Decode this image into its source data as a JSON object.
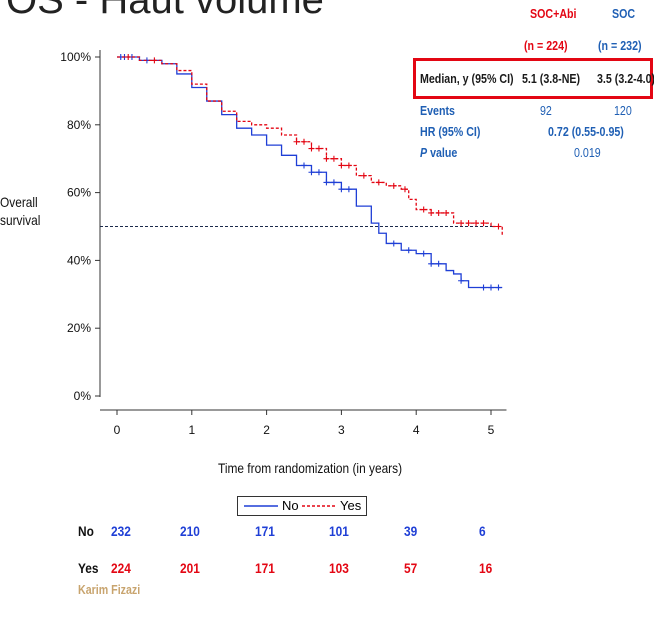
{
  "slide_title": "OS - Haut volume",
  "stats_table": {
    "arm_headers": [
      {
        "name": "SOC+Abi",
        "n": "(n = 224)"
      },
      {
        "name": "SOC",
        "n": "(n = 232)"
      }
    ],
    "rows": [
      {
        "label": "Median, y (95% CI)",
        "values": [
          "5.1 (3.8-NE)",
          "3.5 (3.2-4.0)"
        ]
      },
      {
        "label": "Events",
        "values": [
          "92",
          "120"
        ]
      },
      {
        "label": "HR (95% CI)",
        "value": "0.72 (0.55-0.95)"
      },
      {
        "label_italic": "P",
        "label_rest": " value",
        "value": "0.019"
      }
    ]
  },
  "legend": [
    {
      "label": "No",
      "color": "#1f3fd6",
      "style": "solid"
    },
    {
      "label": "Yes",
      "color": "#e30613",
      "style": "dashed"
    }
  ],
  "number_at_risk": {
    "rows": [
      {
        "label": "No",
        "color": "#1f3fd6",
        "values": [
          "232",
          "210",
          "171",
          "101",
          "39",
          "6"
        ]
      },
      {
        "label": "Yes",
        "color": "#e30613",
        "values": [
          "224",
          "201",
          "171",
          "103",
          "57",
          "16"
        ]
      }
    ]
  },
  "presenter": "Karim Fizazi",
  "chart_data": {
    "type": "line",
    "subtype": "kaplan-meier",
    "xlabel": "Time from randomization (in years)",
    "ylabel": "Overall survival",
    "xlim": [
      0,
      5.1
    ],
    "ylim": [
      0,
      100
    ],
    "x_ticks": [
      "0",
      "1",
      "2",
      "3",
      "4",
      "5"
    ],
    "y_ticks": [
      "0%",
      "20%",
      "40%",
      "60%",
      "80%",
      "100%"
    ],
    "reference_line_y": 50,
    "grid": false,
    "legend_position": "bottom-center",
    "series": [
      {
        "name": "No",
        "color": "#1f3fd6",
        "x": [
          0,
          0.3,
          0.6,
          0.8,
          1.0,
          1.2,
          1.4,
          1.6,
          1.8,
          2.0,
          2.2,
          2.4,
          2.6,
          2.8,
          3.0,
          3.2,
          3.4,
          3.5,
          3.6,
          3.8,
          4.0,
          4.2,
          4.4,
          4.5,
          4.6,
          4.7,
          5.0,
          5.15
        ],
        "y": [
          100,
          99,
          98,
          95,
          91,
          87,
          83,
          79,
          77,
          74,
          71,
          68,
          66,
          63,
          61,
          56,
          51,
          48,
          45,
          43,
          42,
          39,
          37,
          36,
          34,
          32,
          32,
          32
        ],
        "censor_x": [
          0.05,
          0.1,
          0.2,
          0.4,
          2.5,
          2.6,
          2.7,
          2.8,
          2.9,
          3.0,
          3.1,
          3.7,
          3.9,
          4.1,
          4.2,
          4.3,
          4.6,
          4.9,
          5.0,
          5.1
        ]
      },
      {
        "name": "Yes",
        "color": "#e30613",
        "x": [
          0,
          0.3,
          0.6,
          0.8,
          1.0,
          1.2,
          1.4,
          1.6,
          1.8,
          2.0,
          2.2,
          2.4,
          2.6,
          2.8,
          3.0,
          3.2,
          3.4,
          3.6,
          3.8,
          3.9,
          4.0,
          4.2,
          4.4,
          4.5,
          4.7,
          5.0,
          5.15
        ],
        "y": [
          100,
          99,
          98,
          96,
          92,
          87,
          84,
          81,
          80,
          79,
          77,
          75,
          73,
          70,
          68,
          65,
          63,
          62,
          61,
          58,
          55,
          54,
          54,
          51,
          51,
          50,
          47
        ],
        "censor_x": [
          0.15,
          0.5,
          2.4,
          2.5,
          2.6,
          2.7,
          2.8,
          2.9,
          3.0,
          3.1,
          3.3,
          3.5,
          3.7,
          3.85,
          4.1,
          4.2,
          4.3,
          4.4,
          4.6,
          4.7,
          4.8,
          4.9,
          5.1
        ]
      }
    ]
  }
}
